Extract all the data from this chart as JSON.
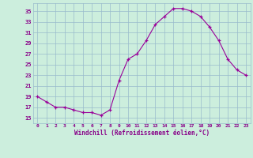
{
  "x": [
    0,
    1,
    2,
    3,
    4,
    5,
    6,
    7,
    8,
    9,
    10,
    11,
    12,
    13,
    14,
    15,
    16,
    17,
    18,
    19,
    20,
    21,
    22,
    23
  ],
  "y": [
    19,
    18,
    17,
    17,
    16.5,
    16,
    16,
    15.5,
    16.5,
    22,
    26,
    27,
    29.5,
    32.5,
    34,
    35.5,
    35.5,
    35,
    34,
    32,
    29.5,
    26,
    24,
    23
  ],
  "line_color": "#990099",
  "marker_color": "#990099",
  "bg_color": "#cceedd",
  "grid_color": "#99bbcc",
  "xlabel": "Windchill (Refroidissement éolien,°C)",
  "xlabel_color": "#880088",
  "ylabel_ticks": [
    15,
    17,
    19,
    21,
    23,
    25,
    27,
    29,
    31,
    33,
    35
  ],
  "xtick_labels": [
    "0",
    "1",
    "2",
    "3",
    "4",
    "5",
    "6",
    "7",
    "8",
    "9",
    "10",
    "11",
    "12",
    "13",
    "14",
    "15",
    "16",
    "17",
    "18",
    "19",
    "20",
    "21",
    "22",
    "23"
  ],
  "ylim": [
    14.0,
    36.5
  ],
  "xlim": [
    -0.5,
    23.5
  ]
}
